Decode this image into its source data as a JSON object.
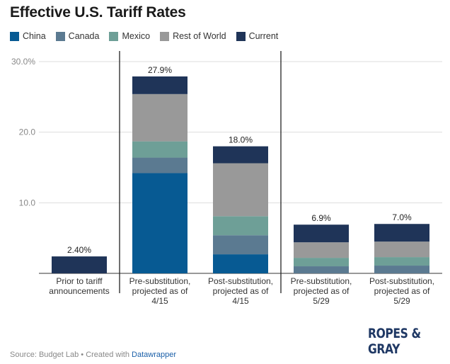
{
  "title": "Effective U.S. Tariff Rates",
  "legend": [
    {
      "name": "China",
      "color": "#075a93"
    },
    {
      "name": "Canada",
      "color": "#5b7a91"
    },
    {
      "name": "Mexico",
      "color": "#6e9f97"
    },
    {
      "name": "Rest of World",
      "color": "#999999"
    },
    {
      "name": "Current",
      "color": "#1f3458"
    }
  ],
  "chart_data": {
    "type": "bar",
    "stacked": true,
    "categories": [
      [
        "Prior to tariff",
        "announcements"
      ],
      [
        "Pre-substitution,",
        "projected as of",
        "4/15"
      ],
      [
        "Post-substitution,",
        "projected as of",
        "4/15"
      ],
      [
        "Pre-substitution,",
        "projected as of",
        "5/29"
      ],
      [
        "Post-substitution,",
        "projected as of",
        "5/29"
      ]
    ],
    "series": [
      {
        "name": "China",
        "color": "#075a93",
        "values": [
          0,
          14.2,
          2.7,
          0,
          0
        ]
      },
      {
        "name": "Canada",
        "color": "#5b7a91",
        "values": [
          0,
          2.2,
          2.7,
          1.0,
          1.1
        ]
      },
      {
        "name": "Mexico",
        "color": "#6e9f97",
        "values": [
          0,
          2.3,
          2.7,
          1.2,
          1.2
        ]
      },
      {
        "name": "Rest of World",
        "color": "#999999",
        "values": [
          0,
          6.7,
          7.5,
          2.2,
          2.2
        ]
      },
      {
        "name": "Current",
        "color": "#1f3458",
        "values": [
          2.4,
          2.5,
          2.4,
          2.5,
          2.5
        ]
      }
    ],
    "totals": [
      2.4,
      27.9,
      18.0,
      6.9,
      7.0
    ],
    "total_labels": [
      "2.40%",
      "27.9%",
      "18.0%",
      "6.9%",
      "7.0%"
    ],
    "y_ticks": [
      {
        "value": 30,
        "label": "30.0%"
      },
      {
        "value": 20,
        "label": "20.0"
      },
      {
        "value": 10,
        "label": "10.0"
      }
    ],
    "ylim": [
      0,
      30
    ],
    "grid": true,
    "legend_position": "top-left",
    "dividers_after_category": [
      0,
      2
    ]
  },
  "logo": {
    "text": "ROPES & GRAY"
  },
  "source": {
    "prefix": "Source: Budget Lab • Created with ",
    "link": "Datawrapper"
  }
}
